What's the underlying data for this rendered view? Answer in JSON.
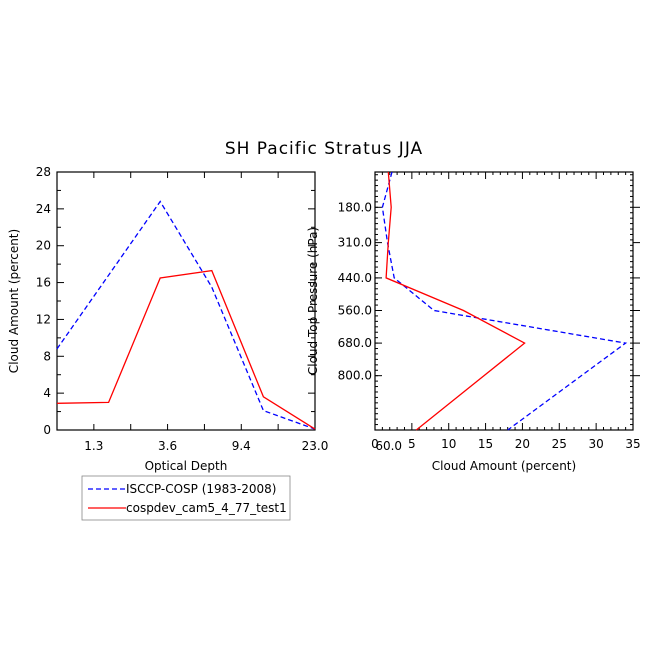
{
  "title": "SH Pacific Stratus JJA",
  "chart_data": [
    {
      "type": "line",
      "xlabel": "Optical Depth",
      "ylabel": "Cloud Amount (percent)",
      "xlim": [
        0,
        7
      ],
      "ylim": [
        0,
        28
      ],
      "x_tick_labels": [
        "1.3",
        "3.6",
        "9.4",
        "23.0",
        "60.0"
      ],
      "y_ticks": [
        0,
        4,
        8,
        12,
        16,
        20,
        24,
        28
      ],
      "y_tick_labels": [
        "0",
        "4",
        "8",
        "12",
        "16",
        "20",
        "24",
        "28"
      ],
      "series": [
        {
          "name": "ISCCP-COSP (1983-2008)",
          "color": "#0000ff",
          "dash": "dashed",
          "points": [
            [
              0,
              8.8
            ],
            [
              2.8,
              24.8
            ],
            [
              4.2,
              15.5
            ],
            [
              5.6,
              2.1
            ],
            [
              7,
              0.1
            ]
          ]
        },
        {
          "name": "cospdev_cam5_4_77_test1",
          "color": "#ff0000",
          "dash": "solid",
          "points": [
            [
              0,
              2.9
            ],
            [
              1.4,
              3.0
            ],
            [
              2.8,
              16.5
            ],
            [
              4.2,
              17.3
            ],
            [
              5.6,
              3.6
            ],
            [
              7,
              0.1
            ]
          ]
        }
      ]
    },
    {
      "type": "line",
      "xlabel": "Cloud Amount (percent)",
      "ylabel": "Cloud Top Pressure (hPa)",
      "xlim": [
        0,
        35
      ],
      "ylim": [
        50,
        1000
      ],
      "y_inverted": true,
      "x_ticks": [
        0,
        5,
        10,
        15,
        20,
        25,
        30,
        35
      ],
      "x_tick_labels": [
        "0",
        "5",
        "10",
        "15",
        "20",
        "25",
        "30",
        "35"
      ],
      "y_ticks": [
        180,
        310,
        440,
        560,
        680,
        800
      ],
      "y_tick_labels": [
        "180.0",
        "310.0",
        "440.0",
        "560.0",
        "680.0",
        "800.0"
      ],
      "series": [
        {
          "name": "ISCCP-COSP (1983-2008)",
          "color": "#0000ff",
          "dash": "dashed",
          "points": [
            [
              2.3,
              50
            ],
            [
              1.0,
              180
            ],
            [
              1.7,
              310
            ],
            [
              2.6,
              440
            ],
            [
              8.0,
              560
            ],
            [
              34.0,
              680
            ],
            [
              18.0,
              1000
            ]
          ]
        },
        {
          "name": "cospdev_cam5_4_77_test1",
          "color": "#ff0000",
          "dash": "solid",
          "points": [
            [
              1.8,
              50
            ],
            [
              2.2,
              180
            ],
            [
              1.8,
              310
            ],
            [
              1.5,
              440
            ],
            [
              12.0,
              560
            ],
            [
              20.3,
              680
            ],
            [
              5.6,
              1000
            ]
          ]
        }
      ]
    }
  ],
  "legend": {
    "placement": "bottom-left",
    "entries": [
      {
        "label": "ISCCP-COSP (1983-2008)",
        "color": "#0000ff",
        "dash": "dashed"
      },
      {
        "label": "cospdev_cam5_4_77_test1",
        "color": "#ff0000",
        "dash": "solid"
      }
    ]
  }
}
